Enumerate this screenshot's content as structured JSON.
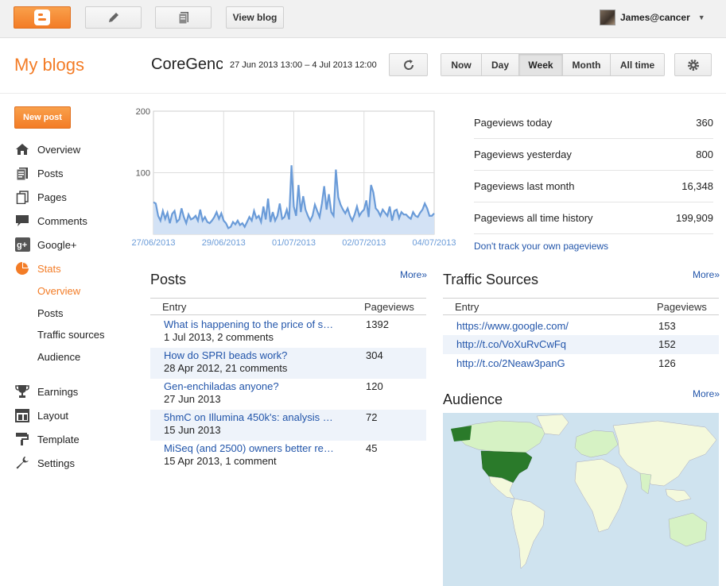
{
  "topbar": {
    "blogger_icon": "blogger-logo",
    "pencil_icon": "pencil-icon",
    "pages_icon": "pages-icon",
    "view_blog_label": "View blog",
    "user_name": "James@cancer"
  },
  "header": {
    "section_title": "My blogs",
    "blog_title": "CoreGenc",
    "date_range": "27 Jun 2013 13:00 – 4 Jul 2013 12:00",
    "ranges": [
      {
        "label": "Now",
        "active": false
      },
      {
        "label": "Day",
        "active": false
      },
      {
        "label": "Week",
        "active": true
      },
      {
        "label": "Month",
        "active": false
      },
      {
        "label": "All time",
        "active": false
      }
    ]
  },
  "sidebar": {
    "new_post_label": "New post",
    "items": [
      {
        "label": "Overview",
        "icon": "home-icon"
      },
      {
        "label": "Posts",
        "icon": "posts-icon"
      },
      {
        "label": "Pages",
        "icon": "pages-icon"
      },
      {
        "label": "Comments",
        "icon": "comments-icon"
      },
      {
        "label": "Google+",
        "icon": "google-plus-icon"
      },
      {
        "label": "Stats",
        "icon": "pie-chart-icon",
        "active": true
      }
    ],
    "stats_sub": [
      {
        "label": "Overview",
        "active": true
      },
      {
        "label": "Posts"
      },
      {
        "label": "Traffic sources"
      },
      {
        "label": "Audience"
      }
    ],
    "items2": [
      {
        "label": "Earnings",
        "icon": "trophy-icon"
      },
      {
        "label": "Layout",
        "icon": "layout-icon"
      },
      {
        "label": "Template",
        "icon": "template-icon"
      },
      {
        "label": "Settings",
        "icon": "wrench-icon"
      }
    ]
  },
  "chart_data": {
    "type": "area",
    "title": "",
    "xlabel": "",
    "ylabel": "",
    "ylim": [
      0,
      200
    ],
    "yticks": [
      "100",
      "200"
    ],
    "xticks": [
      "27/06/2013",
      "29/06/2013",
      "01/07/2013",
      "02/07/2013",
      "04/07/2013"
    ],
    "grid": true,
    "color": "#6a9bd8",
    "fill": "#d3e2f5",
    "series": [
      {
        "values": [
          52,
          50,
          30,
          22,
          38,
          25,
          35,
          18,
          33,
          38,
          20,
          24,
          42,
          28,
          18,
          32,
          24,
          26,
          30,
          22,
          40,
          22,
          28,
          20,
          18,
          22,
          28,
          36,
          25,
          34,
          22,
          18,
          10,
          12,
          20,
          16,
          22,
          15,
          18,
          12,
          20,
          28,
          22,
          38,
          26,
          30,
          20,
          45,
          24,
          58,
          20,
          36,
          22,
          30,
          50,
          25,
          28,
          40,
          24,
          112,
          45,
          30,
          80,
          36,
          62,
          40,
          30,
          22,
          30,
          48,
          38,
          28,
          50,
          78,
          40,
          65,
          36,
          30,
          105,
          60,
          48,
          40,
          34,
          42,
          30,
          22,
          32,
          45,
          30,
          36,
          40,
          55,
          28,
          80,
          68,
          42,
          38,
          30,
          40,
          35,
          30,
          45,
          22,
          38,
          40,
          26,
          36,
          32,
          32,
          28,
          25,
          36,
          30,
          28,
          35,
          40,
          50,
          42,
          30,
          30,
          34
        ]
      }
    ]
  },
  "stats": [
    {
      "label": "Pageviews today",
      "value": "360"
    },
    {
      "label": "Pageviews yesterday",
      "value": "800"
    },
    {
      "label": "Pageviews last month",
      "value": "16,348"
    },
    {
      "label": "Pageviews all time history",
      "value": "199,909"
    }
  ],
  "dont_track": "Don't track your own pageviews",
  "posts": {
    "title": "Posts",
    "more": "More»",
    "col_entry": "Entry",
    "col_views": "Pageviews",
    "rows": [
      {
        "title": "What is happening to the price of s…",
        "meta": "1 Jul 2013, 2 comments",
        "views": "1392"
      },
      {
        "title": "How do SPRI beads work?",
        "meta": "28 Apr 2012, 21 comments",
        "views": "304"
      },
      {
        "title": "Gen-enchiladas anyone?",
        "meta": "27 Jun 2013",
        "views": "120"
      },
      {
        "title": "5hmC on Illumina 450k's: analysis …",
        "meta": "15 Jun 2013",
        "views": "72"
      },
      {
        "title": "MiSeq (and 2500) owners better re…",
        "meta": "15 Apr 2013, 1 comment",
        "views": "45"
      }
    ]
  },
  "traffic": {
    "title": "Traffic Sources",
    "more": "More»",
    "col_entry": "Entry",
    "col_views": "Pageviews",
    "rows": [
      {
        "url": "https://www.google.com/",
        "views": "153"
      },
      {
        "url": "http://t.co/VoXuRvCwFq",
        "views": "152"
      },
      {
        "url": "http://t.co/2Neaw3panG",
        "views": "126"
      }
    ]
  },
  "audience": {
    "title": "Audience",
    "more": "More»",
    "ocean_color": "#cfe3ef",
    "land_color": "#f4f9dc",
    "light_color": "#d6f2c4",
    "top_color": "#2a7a2a"
  }
}
